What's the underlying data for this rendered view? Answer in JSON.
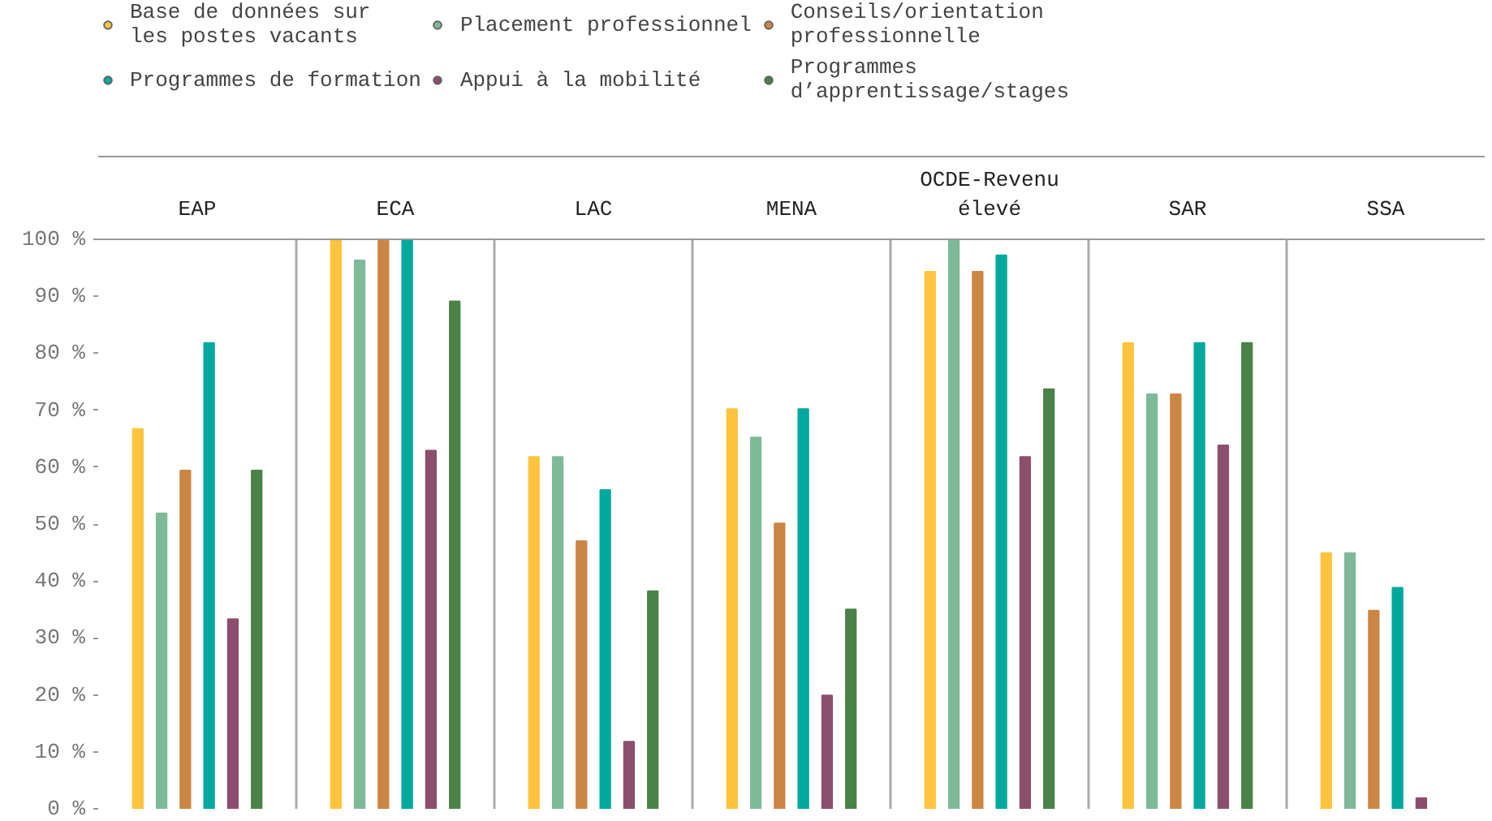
{
  "chart_data": {
    "type": "bar",
    "categories": [
      "EAP",
      "ECA",
      "LAC",
      "MENA",
      "OCDE-Revenu élevé",
      "SAR",
      "SSA"
    ],
    "series": [
      {
        "name": "Base de données sur les postes vacants",
        "color": "#ffc43d",
        "values": [
          66.7,
          100,
          61.8,
          70.2,
          94.3,
          81.8,
          44.9
        ]
      },
      {
        "name": "Placement professionnel",
        "color": "#7fba98",
        "values": [
          51.9,
          96.3,
          61.8,
          65.2,
          100,
          72.8,
          44.9
        ]
      },
      {
        "name": "Conseils/orientation professionnelle",
        "color": "#cc8644",
        "values": [
          59.4,
          100,
          47.0,
          50.1,
          94.3,
          72.8,
          34.8
        ]
      },
      {
        "name": "Programmes de formation",
        "color": "#00a99d",
        "values": [
          81.8,
          100,
          56.0,
          70.2,
          97.2,
          81.8,
          38.8
        ]
      },
      {
        "name": "Appui à la mobilité",
        "color": "#8b4f6d",
        "values": [
          33.3,
          62.9,
          11.8,
          19.9,
          61.8,
          63.8,
          1.9
        ]
      },
      {
        "name": "Programmes d’apprentissage/stages",
        "color": "#4a8248",
        "values": [
          59.4,
          89.1,
          38.2,
          35.0,
          73.7,
          81.8,
          null
        ]
      }
    ],
    "ylim": [
      0,
      100
    ],
    "yticks": [
      {
        "value": 0,
        "label": "0 %"
      },
      {
        "value": 10,
        "label": "10 %"
      },
      {
        "value": 20,
        "label": "20 %"
      },
      {
        "value": 30,
        "label": "30 %"
      },
      {
        "value": 40,
        "label": "40 %"
      },
      {
        "value": 50,
        "label": "50 %"
      },
      {
        "value": 60,
        "label": "60 %"
      },
      {
        "value": 70,
        "label": "70 %"
      },
      {
        "value": 80,
        "label": "80 %"
      },
      {
        "value": 90,
        "label": "90 %"
      },
      {
        "value": 100,
        "label": "100 %"
      }
    ],
    "grid": false,
    "legend": "top"
  }
}
